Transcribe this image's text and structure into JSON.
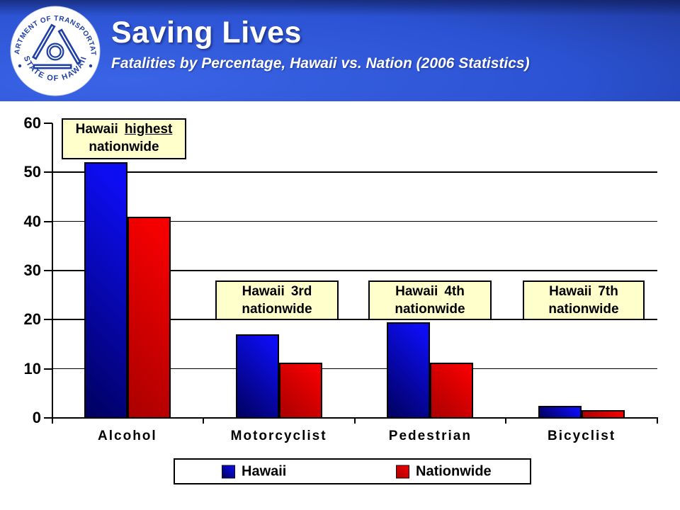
{
  "slide": {
    "title": "Saving Lives",
    "subtitle": "Fatalities by Percentage,  Hawaii vs. Nation (2006 Statistics)",
    "logo": {
      "top_text": "DEPARTMENT OF TRANSPORTATION",
      "bottom_text": "STATE OF HAWAII",
      "separator": "•",
      "seal_color": "#1e3fa8"
    },
    "colors": {
      "header_blue": "#2b52d2",
      "header_dark_navy": "#15226b",
      "callout_bg": "#ffffcc",
      "text_on_header": "#ffffff"
    }
  },
  "chart_data": {
    "type": "bar",
    "categories": [
      "Alcohol",
      "Motorcyclist",
      "Pedestrian",
      "Bicyclist"
    ],
    "series": [
      {
        "name": "Hawaii",
        "color": "#0d0df2",
        "color_dark": "#00005e",
        "values": [
          52,
          17,
          19.5,
          2.5
        ]
      },
      {
        "name": "Nationwide",
        "color": "#f40000",
        "color_dark": "#aa0000",
        "values": [
          41,
          11.3,
          11.2,
          1.6
        ]
      }
    ],
    "ylim": [
      0,
      60
    ],
    "yticks": [
      0,
      10,
      20,
      30,
      40,
      50,
      60
    ],
    "xlabel": "",
    "ylabel": "",
    "grid": "horizontal",
    "legend_position": "bottom",
    "annotations": [
      {
        "category": "Alcohol",
        "line1": "Hawaii",
        "emphasis": "highest",
        "underline": true,
        "line2": "nationwide"
      },
      {
        "category": "Motorcyclist",
        "line1": "Hawaii",
        "emphasis": "3rd",
        "underline": false,
        "line2": "nationwide"
      },
      {
        "category": "Pedestrian",
        "line1": "Hawaii",
        "emphasis": "4th",
        "underline": false,
        "line2": "nationwide"
      },
      {
        "category": "Bicyclist",
        "line1": "Hawaii",
        "emphasis": "7th",
        "underline": false,
        "line2": "nationwide"
      }
    ]
  }
}
